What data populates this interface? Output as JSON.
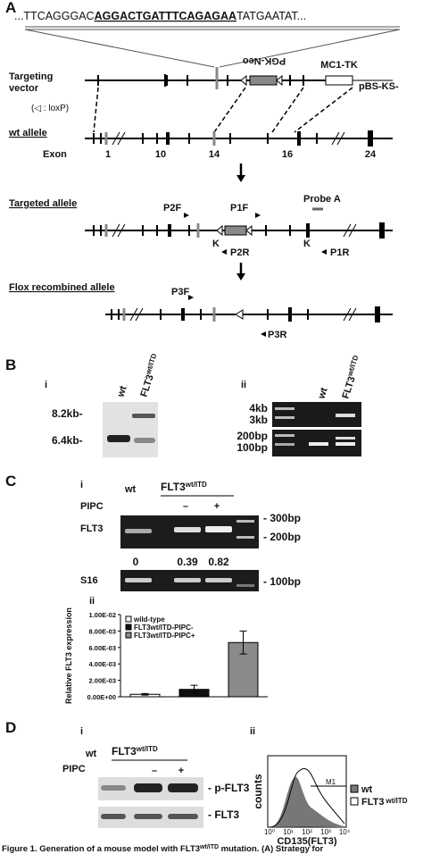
{
  "panel_a": {
    "label": "A",
    "sequence": {
      "prefix": "...TTCAGGGAC",
      "target": "AGGACTGATTTCAGAGAA",
      "suffix": "TATGAATAT..."
    },
    "targeting_vector": {
      "label_line1": "Targeting",
      "label_line2": "vector",
      "loxp_note": "(◁ : loxP)",
      "neo": "PGK-Neo",
      "tk": "MC1-TK",
      "backbone": "pBS-KS-"
    },
    "wt_allele": {
      "label": "wt allele",
      "exon_label": "Exon",
      "exons": [
        "1",
        "10",
        "14",
        "16",
        "24"
      ]
    },
    "targeted_allele": {
      "label": "Targeted allele",
      "p2f": "P2F",
      "p1f": "P1F",
      "p2r": "P2R",
      "p1r": "P1R",
      "probe": "Probe A",
      "sites": [
        "K",
        "K"
      ]
    },
    "flox_allele": {
      "label": "Flox recombined allele",
      "p3f": "P3F",
      "p3r": "P3R"
    }
  },
  "panel_b": {
    "label": "B",
    "sub_i": "i",
    "sub_ii": "ii",
    "wt": "wt",
    "mut": {
      "base": "FLT3",
      "sup": "wt/ITD"
    },
    "markers_i": [
      "8.2kb-",
      "6.4kb-"
    ],
    "markers_ii": [
      "4kb",
      "3kb",
      "200bp",
      "100bp"
    ]
  },
  "panel_c": {
    "label": "C",
    "sub_i": "i",
    "sub_ii": "ii",
    "wt": "wt",
    "mut": {
      "base": "FLT3",
      "sup": "wt/ITD"
    },
    "pipc": "PIPC",
    "minus": "–",
    "plus": "+",
    "gene": "FLT3",
    "control": "S16",
    "ratios": [
      "0",
      "0.39",
      "0.82"
    ],
    "markers": [
      "- 300bp",
      "- 200bp",
      "- 100bp"
    ]
  },
  "chart_data": {
    "type": "bar",
    "y_label": "Relative FLT3 expression",
    "ylim": [
      0,
      0.01
    ],
    "yticks": [
      {
        "value": 0,
        "label": "0.00E+00"
      },
      {
        "value": 0.002,
        "label": "2.00E-03"
      },
      {
        "value": 0.004,
        "label": "4.00E-03"
      },
      {
        "value": 0.006,
        "label": "6.00E-03"
      },
      {
        "value": 0.008,
        "label": "8.00E-03"
      },
      {
        "value": 0.01,
        "label": "1.00E-02"
      }
    ],
    "series": [
      {
        "name": "wild-type",
        "color": "#ffffff",
        "values": [
          0.0003
        ],
        "errors": [
          0.0001
        ]
      },
      {
        "name": "FLT3wt/ITD-PIPC-",
        "color": "#111111",
        "values": [
          0.0009
        ],
        "errors": [
          0.0005
        ]
      },
      {
        "name": "FLT3wt/ITD-PIPC+",
        "color": "#8a8a8a",
        "values": [
          0.0066
        ],
        "errors": [
          0.0014
        ]
      }
    ],
    "legend": "top-left"
  },
  "panel_d": {
    "label": "D",
    "sub_i": "i",
    "sub_ii": "ii",
    "wt": "wt",
    "mut": {
      "base": "FLT3",
      "sup": "wt/ITD"
    },
    "pipc": "PIPC",
    "minus": "–",
    "plus": "+",
    "bands": [
      "- p-FLT3",
      "- FLT3"
    ],
    "flow": {
      "y_label": "counts",
      "x_label": "CD135(FLT3)",
      "gate": "M1",
      "xticks": [
        "10⁰",
        "10¹",
        "10²",
        "10³",
        "10⁴"
      ],
      "legend": [
        "wt",
        {
          "base": "FLT3",
          "sup": "wt/ITD"
        }
      ]
    }
  },
  "caption": {
    "prefix": "Figure 1. Generation of a mouse model with FLT3",
    "sup": "wt/ITD",
    "suffix": " mutation. (A) Strategy for"
  }
}
